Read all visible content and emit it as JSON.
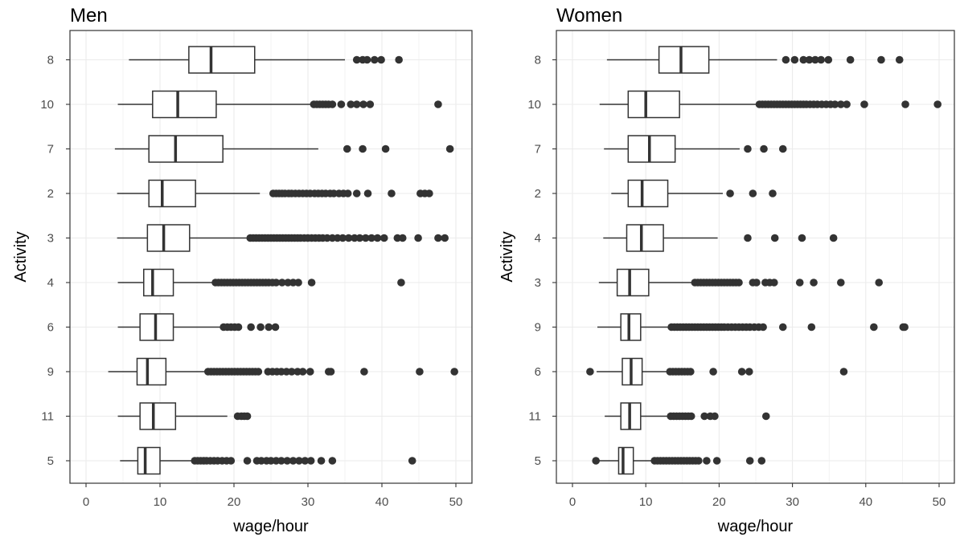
{
  "chart_data": [
    {
      "type": "boxplot",
      "title": "Men",
      "xlabel": "wage/hour",
      "ylabel": "Activity",
      "xlim": [
        0,
        50
      ],
      "xticks": [
        "0",
        "10",
        "20",
        "30",
        "40",
        "50"
      ],
      "grid": true,
      "categories": [
        "8",
        "10",
        "7",
        "2",
        "3",
        "4",
        "6",
        "9",
        "11",
        "5"
      ],
      "boxes": [
        {
          "category": "8",
          "whisker_low": 5.8,
          "q1": 13.9,
          "median": 16.9,
          "q3": 22.8,
          "whisker_high": 35.0,
          "outliers": [
            36.6,
            37.4,
            38.0,
            39.0,
            39.9,
            42.3
          ]
        },
        {
          "category": "10",
          "whisker_low": 4.3,
          "q1": 9.0,
          "median": 12.4,
          "q3": 17.6,
          "whisker_high": 30.4,
          "outliers": [
            30.8,
            31.2,
            31.6,
            32.0,
            32.4,
            32.8,
            33.3,
            34.5,
            35.8,
            36.6,
            37.5,
            38.4,
            47.6
          ]
        },
        {
          "category": "7",
          "whisker_low": 3.9,
          "q1": 8.5,
          "median": 12.1,
          "q3": 18.5,
          "whisker_high": 31.4,
          "outliers": [
            35.3,
            37.4,
            40.5,
            49.2
          ]
        },
        {
          "category": "2",
          "whisker_low": 4.2,
          "q1": 8.5,
          "median": 10.3,
          "q3": 14.8,
          "whisker_high": 23.5,
          "outliers": [
            25.3,
            25.7,
            26.1,
            26.5,
            26.9,
            27.4,
            27.8,
            28.3,
            28.8,
            29.3,
            29.8,
            30.3,
            30.9,
            31.4,
            31.9,
            32.4,
            33.0,
            33.5,
            34.2,
            34.8,
            35.4,
            36.6,
            38.1,
            41.3,
            45.2,
            45.8,
            46.4
          ]
        },
        {
          "category": "3",
          "whisker_low": 4.2,
          "q1": 8.3,
          "median": 10.5,
          "q3": 14.0,
          "whisker_high": 22.0,
          "outliers": [
            22.2,
            22.6,
            23.0,
            23.4,
            23.8,
            24.2,
            24.6,
            25.0,
            25.4,
            25.8,
            26.2,
            26.6,
            27.0,
            27.4,
            27.8,
            28.2,
            28.6,
            29.0,
            29.5,
            30.0,
            30.5,
            31.0,
            31.5,
            32.0,
            32.6,
            33.3,
            34.0,
            34.7,
            35.5,
            36.3,
            37.0,
            37.8,
            38.6,
            39.4,
            40.3,
            42.1,
            42.8,
            44.9,
            47.6,
            48.5
          ]
        },
        {
          "category": "4",
          "whisker_low": 4.3,
          "q1": 7.8,
          "median": 9.0,
          "q3": 11.8,
          "whisker_high": 17.3,
          "outliers": [
            17.5,
            17.9,
            18.3,
            18.7,
            19.1,
            19.5,
            19.9,
            20.3,
            20.7,
            21.1,
            21.5,
            21.9,
            22.3,
            22.7,
            23.1,
            23.5,
            23.9,
            24.3,
            24.7,
            25.2,
            25.7,
            26.5,
            27.3,
            28.0,
            28.7,
            30.5,
            42.6
          ]
        },
        {
          "category": "6",
          "whisker_low": 4.3,
          "q1": 7.3,
          "median": 9.4,
          "q3": 11.8,
          "whisker_high": 18.2,
          "outliers": [
            18.6,
            19.1,
            19.6,
            20.1,
            20.6,
            22.3,
            23.6,
            24.7,
            25.6
          ]
        },
        {
          "category": "9",
          "whisker_low": 3.0,
          "q1": 6.9,
          "median": 8.3,
          "q3": 10.8,
          "whisker_high": 16.2,
          "outliers": [
            16.5,
            16.9,
            17.3,
            17.7,
            18.1,
            18.5,
            18.9,
            19.3,
            19.7,
            20.1,
            20.5,
            20.9,
            21.3,
            21.7,
            22.1,
            22.5,
            22.9,
            23.3,
            24.6,
            25.2,
            25.8,
            26.4,
            27.1,
            27.8,
            28.6,
            29.3,
            30.3,
            32.8,
            33.1,
            37.6,
            45.1,
            49.8
          ]
        },
        {
          "category": "11",
          "whisker_low": 4.3,
          "q1": 7.3,
          "median": 9.1,
          "q3": 12.1,
          "whisker_high": 19.1,
          "outliers": [
            20.5,
            21.0,
            21.4,
            21.8
          ]
        },
        {
          "category": "5",
          "whisker_low": 4.6,
          "q1": 7.0,
          "median": 8.0,
          "q3": 10.0,
          "whisker_high": 14.4,
          "outliers": [
            14.7,
            15.1,
            15.5,
            15.9,
            16.3,
            16.8,
            17.3,
            17.8,
            18.4,
            19.0,
            19.6,
            21.8,
            23.1,
            23.7,
            24.4,
            25.0,
            25.7,
            26.4,
            27.2,
            28.0,
            28.8,
            29.6,
            30.4,
            31.8,
            33.3,
            44.1
          ]
        }
      ]
    },
    {
      "type": "boxplot",
      "title": "Women",
      "xlabel": "wage/hour",
      "ylabel": "Activity",
      "xlim": [
        0,
        50
      ],
      "xticks": [
        "0",
        "10",
        "20",
        "30",
        "40",
        "50"
      ],
      "grid": true,
      "categories": [
        "8",
        "10",
        "7",
        "2",
        "4",
        "3",
        "9",
        "6",
        "11",
        "5"
      ],
      "boxes": [
        {
          "category": "8",
          "whisker_low": 4.7,
          "q1": 11.8,
          "median": 14.8,
          "q3": 18.6,
          "whisker_high": 27.9,
          "outliers": [
            29.1,
            30.3,
            31.5,
            32.3,
            33.1,
            33.9,
            34.9,
            37.9,
            42.1,
            44.6
          ]
        },
        {
          "category": "10",
          "whisker_low": 3.7,
          "q1": 7.6,
          "median": 10.0,
          "q3": 14.6,
          "whisker_high": 25.2,
          "outliers": [
            25.5,
            25.9,
            26.3,
            26.7,
            27.1,
            27.5,
            27.9,
            28.3,
            28.7,
            29.1,
            29.5,
            29.9,
            30.3,
            30.7,
            31.1,
            31.5,
            31.9,
            32.4,
            32.9,
            33.4,
            34.0,
            34.6,
            35.2,
            35.8,
            36.6,
            37.4,
            39.8,
            45.4,
            49.8
          ]
        },
        {
          "category": "7",
          "whisker_low": 4.3,
          "q1": 7.6,
          "median": 10.5,
          "q3": 14.0,
          "whisker_high": 22.8,
          "outliers": [
            23.9,
            26.1,
            28.7
          ]
        },
        {
          "category": "2",
          "whisker_low": 5.3,
          "q1": 7.6,
          "median": 9.5,
          "q3": 13.0,
          "whisker_high": 20.5,
          "outliers": [
            21.5,
            24.6,
            27.3
          ]
        },
        {
          "category": "4",
          "whisker_low": 4.2,
          "q1": 7.4,
          "median": 9.4,
          "q3": 12.4,
          "whisker_high": 19.8,
          "outliers": [
            23.9,
            27.6,
            31.3,
            35.6
          ]
        },
        {
          "category": "3",
          "whisker_low": 3.6,
          "q1": 6.1,
          "median": 7.8,
          "q3": 10.4,
          "whisker_high": 16.4,
          "outliers": [
            16.7,
            17.1,
            17.5,
            17.9,
            18.3,
            18.7,
            19.1,
            19.5,
            19.9,
            20.3,
            20.7,
            21.1,
            21.5,
            21.9,
            22.3,
            22.7,
            24.6,
            25.1,
            26.3,
            26.9,
            27.5,
            31.0,
            32.9,
            36.6,
            41.8
          ]
        },
        {
          "category": "9",
          "whisker_low": 3.4,
          "q1": 6.6,
          "median": 7.7,
          "q3": 9.3,
          "whisker_high": 13.3,
          "outliers": [
            13.5,
            13.9,
            14.3,
            14.7,
            15.1,
            15.5,
            15.9,
            16.3,
            16.7,
            17.1,
            17.5,
            17.9,
            18.3,
            18.7,
            19.1,
            19.5,
            19.9,
            20.3,
            20.7,
            21.2,
            21.7,
            22.2,
            22.7,
            23.2,
            23.7,
            24.2,
            24.8,
            25.4,
            26.0,
            28.7,
            32.6,
            41.1,
            45.1,
            45.3
          ]
        },
        {
          "category": "6",
          "whisker_low": 3.3,
          "q1": 6.8,
          "median": 8.0,
          "q3": 9.5,
          "whisker_high": 13.0,
          "outliers": [
            2.4,
            13.3,
            13.7,
            14.1,
            14.5,
            14.9,
            15.3,
            15.7,
            16.1,
            19.2,
            23.1,
            24.1,
            37.0
          ]
        },
        {
          "category": "11",
          "whisker_low": 4.4,
          "q1": 6.6,
          "median": 7.8,
          "q3": 9.3,
          "whisker_high": 13.0,
          "outliers": [
            13.4,
            13.8,
            14.2,
            14.6,
            15.0,
            15.4,
            15.8,
            16.2,
            18.0,
            18.8,
            19.4,
            26.4
          ]
        },
        {
          "category": "5",
          "whisker_low": 3.4,
          "q1": 6.3,
          "median": 6.9,
          "q3": 8.3,
          "whisker_high": 11.0,
          "outliers": [
            3.2,
            11.2,
            11.6,
            12.0,
            12.4,
            12.8,
            13.2,
            13.6,
            14.0,
            14.4,
            14.8,
            15.2,
            15.6,
            16.0,
            16.4,
            16.8,
            17.2,
            18.3,
            19.7,
            24.2,
            25.8
          ]
        }
      ]
    }
  ]
}
